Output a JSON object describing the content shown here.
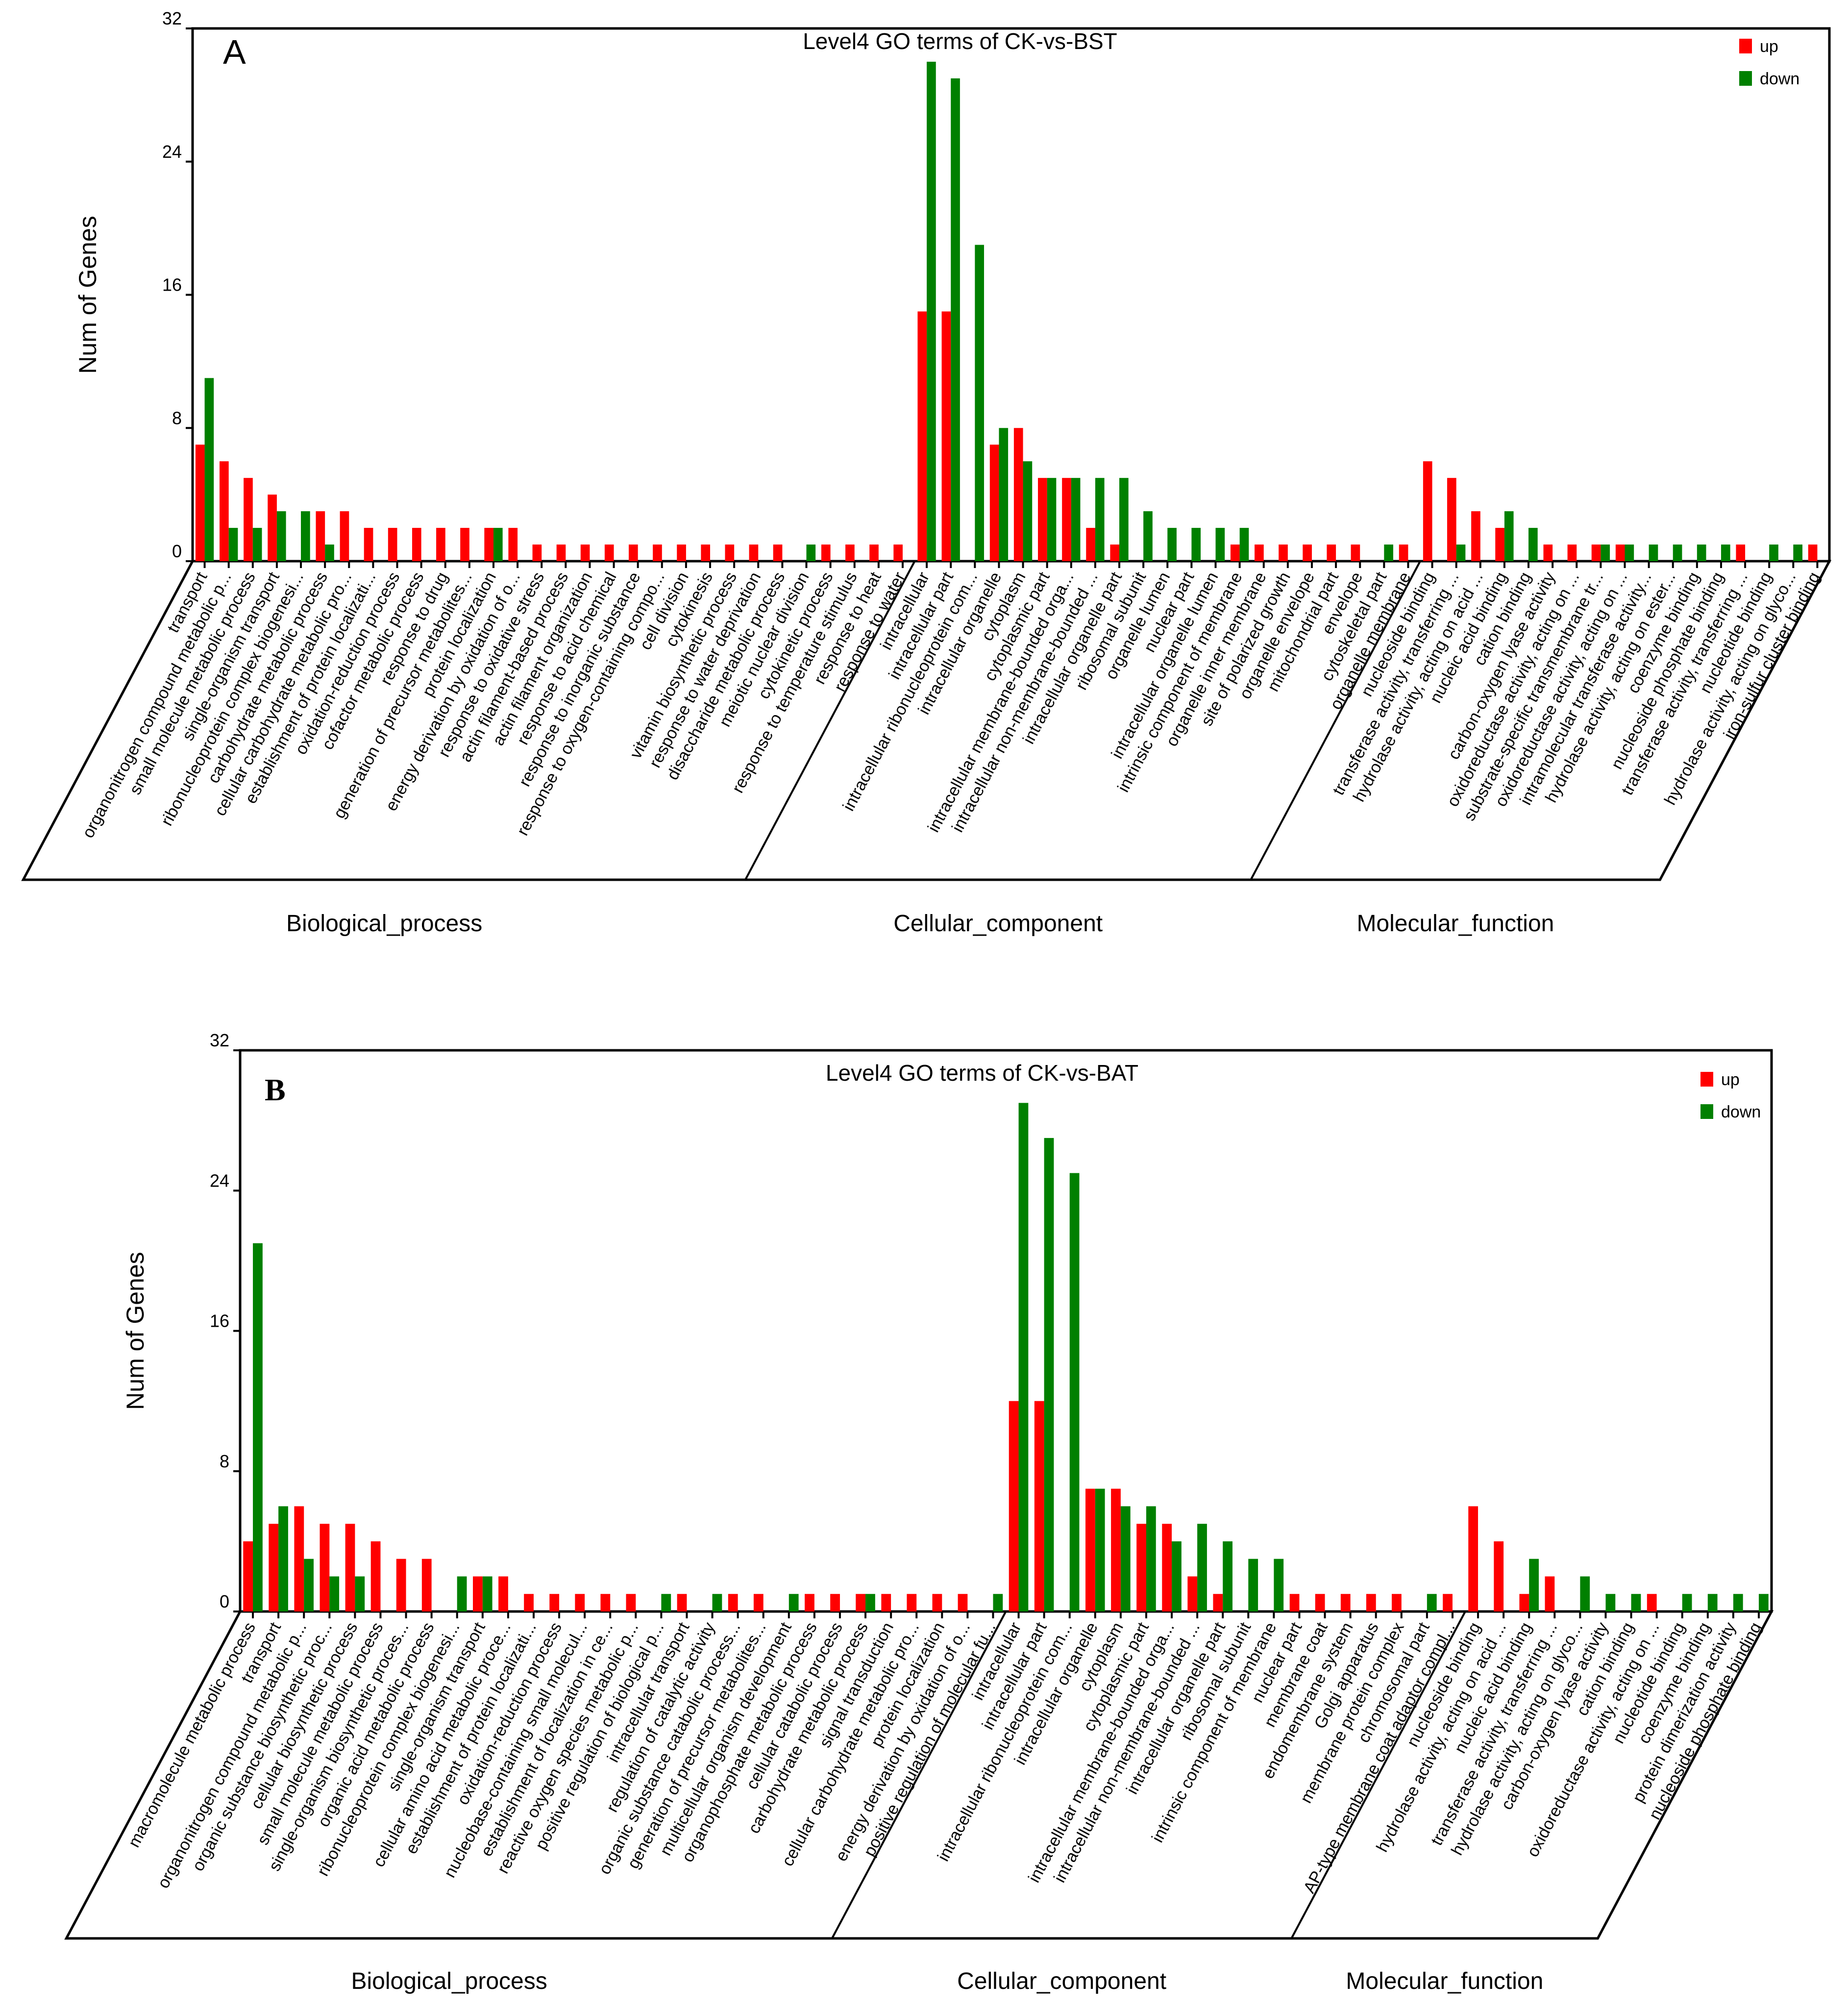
{
  "chart_data": [
    {
      "type": "bar",
      "panel_label": "A",
      "title": "Level4 GO terms of CK-vs-BST",
      "ylabel": "Num of Genes",
      "ylim": [
        0,
        32
      ],
      "yticks": [
        "0",
        "8",
        "16",
        "24",
        "32"
      ],
      "legend_placement": "top-right",
      "series": [
        {
          "name": "up",
          "color": "#ff0000"
        },
        {
          "name": "down",
          "color": "#008000"
        }
      ],
      "groups": [
        {
          "name": "Biological_process",
          "categories": [
            "transport",
            "organonitrogen compound metabolic p...",
            "small molecule metabolic process",
            "single-organism transport",
            "ribonucleoprotein complex biogenesi...",
            "carbohydrate metabolic process",
            "cellular carbohydrate metabolic pro...",
            "establishment of protein localizati...",
            "oxidation-reduction process",
            "cofactor metabolic process",
            "response to drug",
            "generation of precursor metabolites...",
            "protein localization",
            "energy derivation by oxidation of o...",
            "response to oxidative stress",
            "actin filament-based process",
            "actin filament organization",
            "response to acid chemical",
            "response to inorganic substance",
            "response to oxygen-containing compo...",
            "cell division",
            "cytokinesis",
            "vitamin biosynthetic process",
            "response to water deprivation",
            "disaccharide metabolic process",
            "meiotic nuclear division",
            "cytokinetic process",
            "response to temperature stimulus",
            "response to heat",
            "response to water"
          ],
          "up": [
            7,
            6,
            5,
            4,
            0,
            3,
            3,
            2,
            2,
            2,
            2,
            2,
            2,
            2,
            1,
            1,
            1,
            1,
            1,
            1,
            1,
            1,
            1,
            1,
            1,
            0,
            1,
            1,
            1,
            1
          ],
          "down": [
            11,
            2,
            2,
            3,
            3,
            1,
            0,
            0,
            0,
            0,
            0,
            0,
            2,
            0,
            0,
            0,
            0,
            0,
            0,
            0,
            0,
            0,
            0,
            0,
            0,
            1,
            0,
            0,
            0,
            0
          ]
        },
        {
          "name": "Cellular_component",
          "categories": [
            "intracellular",
            "intracellular part",
            "intracellular ribonucleoprotein com...",
            "intracellular organelle",
            "cytoplasm",
            "cytoplasmic part",
            "intracellular membrane-bounded orga...",
            "intracellular non-membrane-bounded ...",
            "intracellular organelle part",
            "ribosomal subunit",
            "organelle lumen",
            "nuclear part",
            "intracellular organelle lumen",
            "intrinsic component of membrane",
            "organelle inner membrane",
            "site of polarized growth",
            "organelle envelope",
            "mitochondrial part",
            "envelope",
            "cytoskeletal part",
            "organelle membrane"
          ],
          "up": [
            15,
            15,
            0,
            7,
            8,
            5,
            5,
            2,
            1,
            0,
            0,
            0,
            0,
            1,
            1,
            1,
            1,
            1,
            1,
            0,
            1
          ],
          "down": [
            30,
            29,
            19,
            8,
            6,
            5,
            5,
            5,
            5,
            3,
            2,
            2,
            2,
            2,
            0,
            0,
            0,
            0,
            0,
            1,
            0
          ]
        },
        {
          "name": "Molecular_function",
          "categories": [
            "nucleoside binding",
            "transferase activity, transferring ...",
            "hydrolase activity, acting on acid ...",
            "nucleic acid binding",
            "cation binding",
            "carbon-oxygen lyase activity",
            "oxidoreductase activity, acting on ...",
            "substrate-specific transmembrane tr...",
            "oxidoreductase activity, acting on ...",
            "intramolecular transferase activity...",
            "hydrolase activity, acting on ester...",
            "coenzyme binding",
            "nucleoside phosphate binding",
            "transferase activity, transferring ...",
            "nucleotide binding",
            "hydrolase activity, acting on glyco...",
            "iron-sulfur cluster binding"
          ],
          "up": [
            6,
            5,
            3,
            2,
            0,
            1,
            1,
            1,
            1,
            0,
            0,
            0,
            0,
            1,
            0,
            0,
            1
          ],
          "down": [
            0,
            1,
            0,
            3,
            2,
            0,
            0,
            1,
            1,
            1,
            1,
            1,
            1,
            0,
            1,
            1,
            0
          ]
        }
      ]
    },
    {
      "type": "bar",
      "panel_label": "B",
      "title": "Level4 GO terms of CK-vs-BAT",
      "ylabel": "Num of Genes",
      "ylim": [
        0,
        32
      ],
      "yticks": [
        "0",
        "8",
        "16",
        "24",
        "32"
      ],
      "legend_placement": "top-right",
      "series": [
        {
          "name": "up",
          "color": "#ff0000"
        },
        {
          "name": "down",
          "color": "#008000"
        }
      ],
      "groups": [
        {
          "name": "Biological_process",
          "categories": [
            "macromolecule metabolic process",
            "transport",
            "organonitrogen compound metabolic p...",
            "organic substance biosynthetic proc...",
            "cellular biosynthetic process",
            "small molecule metabolic process",
            "single-organism biosynthetic proces...",
            "organic acid metabolic process",
            "ribonucleoprotein complex biogenesi...",
            "single-organism transport",
            "cellular amino acid metabolic proce...",
            "establishment of protein localizati...",
            "oxidation-reduction process",
            "nucleobase-containing small molecul...",
            "establishment of localization in ce...",
            "reactive oxygen species metabolic p...",
            "positive regulation of biological p...",
            "intracellular transport",
            "regulation of catalytic activity",
            "organic substance catabolic process...",
            "generation of precursor metabolites...",
            "multicellular organism development",
            "organophosphate metabolic process",
            "cellular catabolic process",
            "carbohydrate metabolic process",
            "signal transduction",
            "cellular carbohydrate metabolic pro...",
            "protein localization",
            "energy derivation by oxidation of o...",
            "positive regulation of molecular fu..."
          ],
          "up": [
            4,
            5,
            6,
            5,
            5,
            4,
            3,
            3,
            0,
            2,
            2,
            1,
            1,
            1,
            1,
            1,
            0,
            1,
            0,
            1,
            1,
            0,
            1,
            1,
            1,
            1,
            1,
            1,
            1,
            0
          ],
          "down": [
            21,
            6,
            3,
            2,
            2,
            0,
            0,
            0,
            2,
            2,
            0,
            0,
            0,
            0,
            0,
            0,
            1,
            0,
            1,
            0,
            0,
            1,
            0,
            0,
            1,
            0,
            0,
            0,
            0,
            1
          ]
        },
        {
          "name": "Cellular_component",
          "categories": [
            "intracellular",
            "intracellular part",
            "intracellular ribonucleoprotein com...",
            "intracellular organelle",
            "cytoplasm",
            "cytoplasmic part",
            "intracellular membrane-bounded orga...",
            "intracellular non-membrane-bounded ...",
            "intracellular organelle part",
            "ribosomal subunit",
            "intrinsic component of membrane",
            "nuclear part",
            "membrane coat",
            "endomembrane system",
            "Golgi apparatus",
            "membrane protein complex",
            "chromosomal part",
            "AP-type membrane coat adaptor compl..."
          ],
          "up": [
            12,
            12,
            0,
            7,
            7,
            5,
            5,
            2,
            1,
            0,
            0,
            1,
            1,
            1,
            1,
            1,
            0,
            1
          ],
          "down": [
            29,
            27,
            25,
            7,
            6,
            6,
            4,
            5,
            4,
            3,
            3,
            0,
            0,
            0,
            0,
            0,
            1,
            0
          ]
        },
        {
          "name": "Molecular_function",
          "categories": [
            "nucleoside binding",
            "hydrolase activity, acting on acid ...",
            "nucleic acid binding",
            "transferase activity, transferring ...",
            "hydrolase activity, acting on glyco...",
            "carbon-oxygen lyase activity",
            "cation binding",
            "oxidoreductase activity, acting on ...",
            "nucleotide binding",
            "coenzyme binding",
            "protein dimerization activity",
            "nucleoside phosphate binding"
          ],
          "up": [
            6,
            4,
            1,
            2,
            0,
            0,
            0,
            1,
            0,
            0,
            0,
            0
          ],
          "down": [
            0,
            0,
            3,
            0,
            2,
            1,
            1,
            0,
            1,
            1,
            1,
            1
          ]
        }
      ]
    }
  ]
}
